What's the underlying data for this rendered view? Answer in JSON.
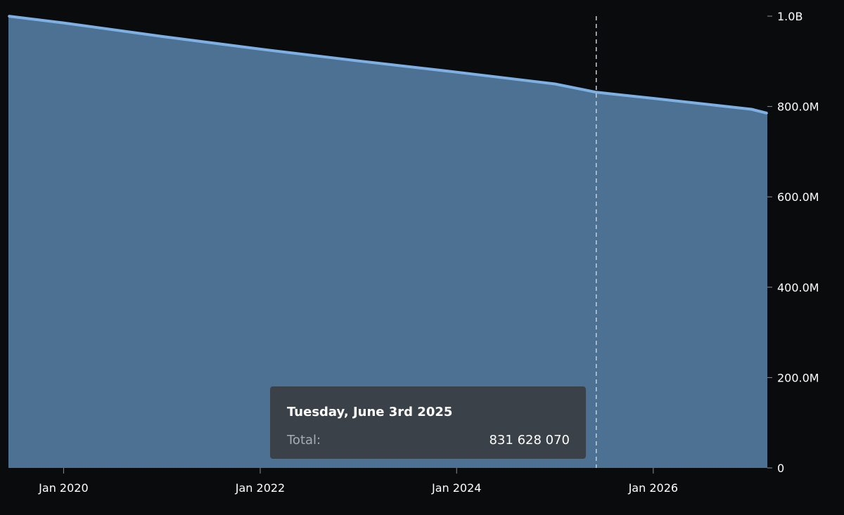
{
  "chart_data": {
    "type": "area",
    "title": "",
    "xlabel": "",
    "ylabel": "",
    "x_ticks": [
      "Jan 2020",
      "Jan 2022",
      "Jan 2024",
      "Jan 2026"
    ],
    "y_ticks": [
      "0",
      "200.0M",
      "400.0M",
      "600.0M",
      "800.0M",
      "1.0B"
    ],
    "xlim": [
      "2019-06-10",
      "2027-03-01"
    ],
    "ylim": [
      0,
      1000000000
    ],
    "series": [
      {
        "x": [
          "2019-06-10",
          "2020-01-01",
          "2021-01-01",
          "2022-01-01",
          "2023-01-01",
          "2024-01-01",
          "2025-01-01",
          "2025-06-03",
          "2026-01-01",
          "2027-01-01",
          "2027-03-01"
        ],
        "values": [
          1000000000,
          985000000,
          955000000,
          927000000,
          901000000,
          876000000,
          850000000,
          831628070,
          818000000,
          794000000,
          785000000
        ]
      }
    ],
    "crosshair_x": "2025-06-03",
    "grid": false,
    "legend": "none",
    "colors": {
      "area_fill": "#4d7193",
      "line": "#7fb0e3",
      "background": "#0a0b0d",
      "axis_text": "#ffffff",
      "crosshair": "#c8cdd3"
    }
  },
  "tooltip": {
    "date": "Tuesday, June 3rd 2025",
    "label": "Total:",
    "value": "831 628 070"
  }
}
